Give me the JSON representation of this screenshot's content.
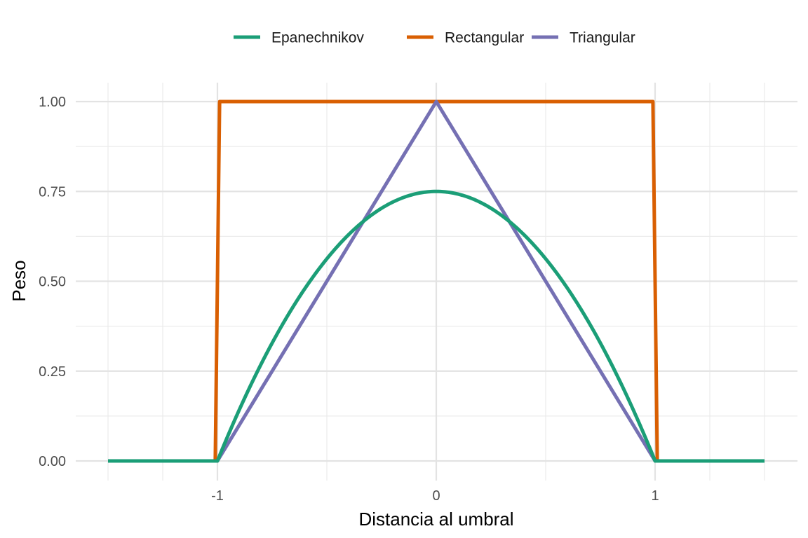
{
  "chart_data": {
    "type": "line",
    "xlabel": "Distancia al umbral",
    "ylabel": "Peso",
    "xlim": [
      -1.5,
      1.5
    ],
    "ylim": [
      0,
      1
    ],
    "x_ticks": [
      -1,
      0,
      1
    ],
    "x_tick_labels": [
      "-1",
      "0",
      "1"
    ],
    "y_ticks": [
      0,
      0.25,
      0.5,
      0.75,
      1
    ],
    "y_tick_labels": [
      "0.00",
      "0.25",
      "0.50",
      "0.75",
      "1.00"
    ],
    "grid": true,
    "legend_position": "top",
    "series": [
      {
        "name": "Epanechnikov",
        "color": "#1b9e77",
        "x": [
          -1.5,
          -1.0,
          -0.9,
          -0.8,
          -0.7,
          -0.6,
          -0.5,
          -0.4,
          -0.3,
          -0.2,
          -0.1,
          0.0,
          0.1,
          0.2,
          0.3,
          0.4,
          0.5,
          0.6,
          0.7,
          0.8,
          0.9,
          1.0,
          1.5
        ],
        "y": [
          0,
          0,
          0.1425,
          0.27,
          0.3825,
          0.48,
          0.5625,
          0.63,
          0.6825,
          0.72,
          0.7425,
          0.75,
          0.7425,
          0.72,
          0.6825,
          0.63,
          0.5625,
          0.48,
          0.3825,
          0.27,
          0.1425,
          0,
          0
        ]
      },
      {
        "name": "Rectangular",
        "color": "#d95f02",
        "x": [
          -1.5,
          -1.01,
          -0.99,
          0.99,
          1.01,
          1.5
        ],
        "y": [
          0,
          0,
          1,
          1,
          0,
          0
        ]
      },
      {
        "name": "Triangular",
        "color": "#7570b3",
        "x": [
          -1.5,
          -1.0,
          0.0,
          1.0,
          1.5
        ],
        "y": [
          0,
          0,
          1,
          0,
          0
        ]
      }
    ],
    "draw_order": [
      "Rectangular",
      "Triangular",
      "Epanechnikov"
    ]
  }
}
